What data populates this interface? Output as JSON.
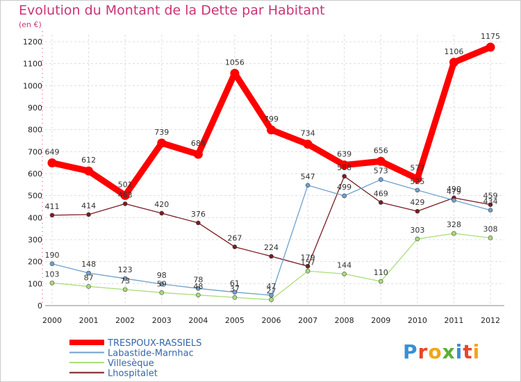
{
  "title": "Evolution du Montant de la Dette par Habitant",
  "subtitle": "(en €)",
  "logo": "Proxiti",
  "chart_data": {
    "type": "line",
    "x": [
      "2000",
      "2001",
      "2002",
      "2003",
      "2004",
      "2005",
      "2006",
      "2007",
      "2008",
      "2009",
      "2010",
      "2011",
      "2012"
    ],
    "ylim": [
      0,
      1200
    ],
    "yticks": [
      0,
      100,
      200,
      300,
      400,
      500,
      600,
      700,
      800,
      900,
      1000,
      1100,
      1200
    ],
    "grid": true,
    "legend_position": "bottom-left",
    "series": [
      {
        "name": "TRESPOUX-RASSIELS",
        "color": "#ff0000",
        "values": [
          649,
          612,
          501,
          739,
          688,
          1056,
          799,
          734,
          639,
          656,
          577,
          1106,
          1175
        ]
      },
      {
        "name": "Labastide-Marnhac",
        "color": "#6ea0cc",
        "values": [
          190,
          148,
          123,
          98,
          78,
          61,
          47,
          547,
          499,
          573,
          525,
          479,
          434
        ]
      },
      {
        "name": "Villesèque",
        "color": "#aadd77",
        "values": [
          103,
          87,
          73,
          59,
          48,
          37,
          27,
          157,
          144,
          110,
          303,
          328,
          308
        ]
      },
      {
        "name": "Lhospitalet",
        "color": "#7a1a22",
        "values": [
          411,
          414,
          463,
          420,
          376,
          267,
          224,
          179,
          588,
          469,
          429,
          490,
          459
        ]
      }
    ]
  }
}
